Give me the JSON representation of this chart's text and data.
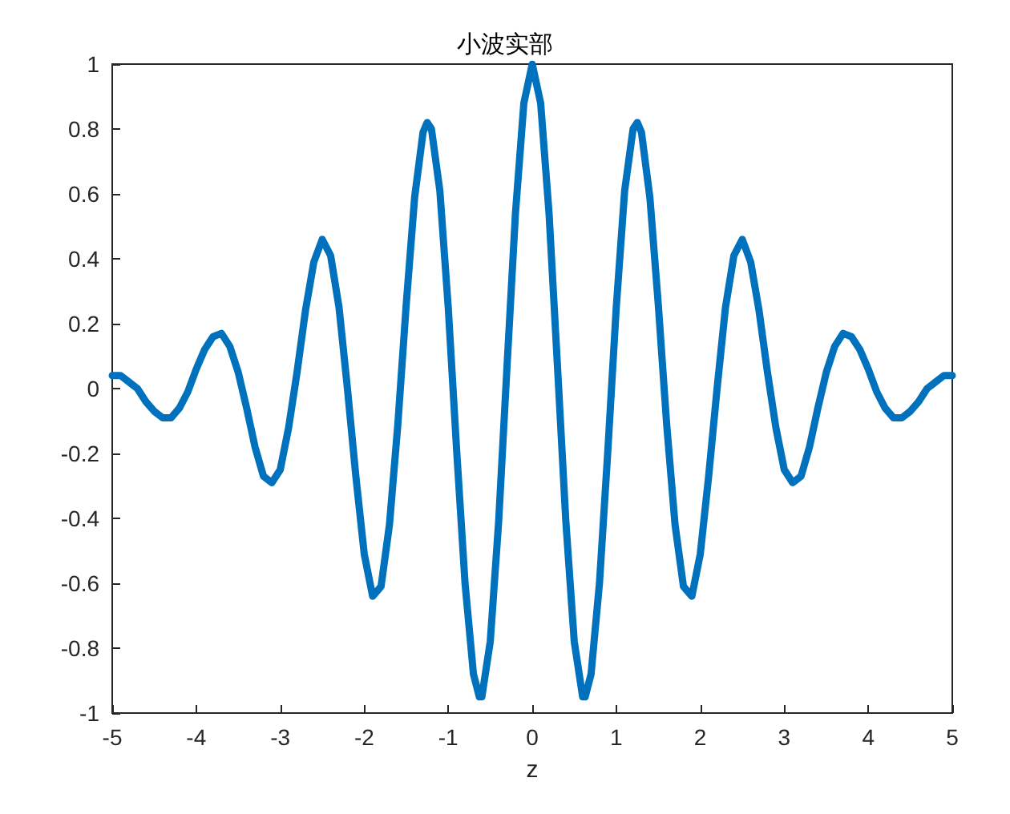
{
  "chart_data": {
    "type": "line",
    "title": "小波实部",
    "xlabel": "z",
    "xlim": [
      -5,
      5
    ],
    "xticks": [
      -5,
      -4,
      -3,
      -2,
      -1,
      0,
      1,
      2,
      3,
      4,
      5
    ],
    "ylim": [
      -1,
      1
    ],
    "yticks": [
      -1,
      -0.8,
      -0.6,
      -0.4,
      -0.2,
      0,
      0.2,
      0.4,
      0.6,
      0.8,
      1
    ],
    "grid": false,
    "marker": "none",
    "line_style": "solid",
    "series": [
      {
        "color": "#0072bd",
        "x": [
          -5.0,
          -4.9,
          -4.8,
          -4.7,
          -4.6,
          -4.5,
          -4.4,
          -4.3,
          -4.2,
          -4.1,
          -4.0,
          -3.9,
          -3.8,
          -3.7,
          -3.6,
          -3.5,
          -3.4,
          -3.3,
          -3.2,
          -3.1,
          -3.0,
          -2.9,
          -2.8,
          -2.7,
          -2.6,
          -2.5,
          -2.4,
          -2.3,
          -2.2,
          -2.1,
          -2.0,
          -1.9,
          -1.8,
          -1.7,
          -1.6,
          -1.5,
          -1.4,
          -1.3,
          -1.25,
          -1.2,
          -1.1,
          -1.0,
          -0.9,
          -0.8,
          -0.7,
          -0.63,
          -0.6,
          -0.5,
          -0.4,
          -0.3,
          -0.2,
          -0.1,
          0,
          0.1,
          0.2,
          0.3,
          0.4,
          0.5,
          0.6,
          0.63,
          0.7,
          0.8,
          0.9,
          1.0,
          1.1,
          1.2,
          1.25,
          1.3,
          1.4,
          1.5,
          1.6,
          1.7,
          1.8,
          1.9,
          2.0,
          2.1,
          2.2,
          2.3,
          2.4,
          2.5,
          2.6,
          2.7,
          2.8,
          2.9,
          3.0,
          3.1,
          3.2,
          3.3,
          3.4,
          3.5,
          3.6,
          3.7,
          3.8,
          3.9,
          4.0,
          4.1,
          4.2,
          4.3,
          4.4,
          4.5,
          4.6,
          4.7,
          4.8,
          4.9,
          5.0
        ],
        "values": [
          0.04,
          0.04,
          0.02,
          0.0,
          -0.04,
          -0.07,
          -0.09,
          -0.09,
          -0.06,
          -0.01,
          0.06,
          0.12,
          0.16,
          0.17,
          0.13,
          0.05,
          -0.06,
          -0.18,
          -0.27,
          -0.29,
          -0.25,
          -0.12,
          0.05,
          0.24,
          0.39,
          0.46,
          0.41,
          0.25,
          0.0,
          -0.27,
          -0.51,
          -0.64,
          -0.61,
          -0.42,
          -0.11,
          0.26,
          0.59,
          0.79,
          0.82,
          0.8,
          0.61,
          0.25,
          -0.19,
          -0.6,
          -0.88,
          -0.95,
          -0.95,
          -0.78,
          -0.41,
          0.07,
          0.54,
          0.88,
          1.0,
          0.88,
          0.54,
          0.07,
          -0.41,
          -0.78,
          -0.95,
          -0.95,
          -0.88,
          -0.6,
          -0.19,
          0.25,
          0.61,
          0.8,
          0.82,
          0.79,
          0.59,
          0.26,
          -0.11,
          -0.42,
          -0.61,
          -0.64,
          -0.51,
          -0.27,
          0.0,
          0.25,
          0.41,
          0.46,
          0.39,
          0.24,
          0.05,
          -0.12,
          -0.25,
          -0.29,
          -0.27,
          -0.18,
          -0.06,
          0.05,
          0.13,
          0.17,
          0.16,
          0.12,
          0.06,
          -0.01,
          -0.06,
          -0.09,
          -0.09,
          -0.07,
          -0.04,
          0.0,
          0.02,
          0.04,
          0.04
        ]
      }
    ]
  }
}
